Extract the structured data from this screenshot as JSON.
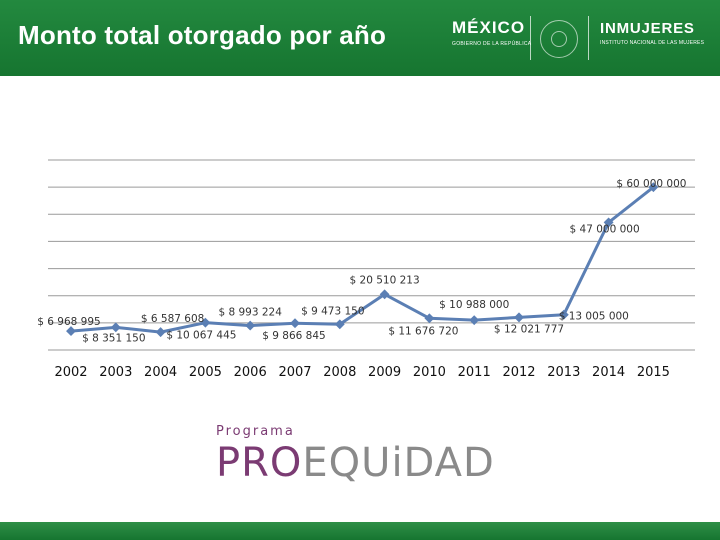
{
  "header": {
    "title": "Monto total otorgado por año",
    "logo_mexico": "MÉXICO",
    "logo_mexico_sub": "GOBIERNO DE LA REPÚBLICA",
    "logo_inmujeres": "INMUJERES",
    "logo_inmujeres_sub": "INSTITUTO NACIONAL DE LAS MUJERES"
  },
  "program": {
    "label": "Programa",
    "name_part1": "PRO",
    "name_part2": "EQUiDAD"
  },
  "colors": {
    "header_green": "#1d7f37",
    "line": "#5b7fb4",
    "gridline": "#9a9a9a",
    "program_purple": "#7b3b73"
  },
  "chart_data": {
    "type": "line",
    "title": "Monto total otorgado por año",
    "x": [
      "2002",
      "2003",
      "2004",
      "2005",
      "2006",
      "2007",
      "2008",
      "2009",
      "2010",
      "2011",
      "2012",
      "2013",
      "2014",
      "2015"
    ],
    "series": [
      {
        "name": "",
        "values": [
          6968995,
          8351150,
          6587608,
          10067445,
          8993224,
          9866845,
          9473150,
          20510213,
          11676720,
          10988000,
          12021777,
          13005000,
          47000000,
          60000000
        ]
      }
    ],
    "data_labels": [
      "$ 6 968 995",
      "$ 8 351 150",
      "$ 6 587 608",
      "$ 10 067 445",
      "$ 8 993 224",
      "$ 9 866 845",
      "$ 9 473 150",
      "$ 20 510 213",
      "$ 11 676 720",
      "$ 10 988 000",
      "$ 12 021 777",
      "$ 13 005 000",
      "$ 47 000 000",
      "$ 60 000 000"
    ],
    "ylim": [
      0,
      70000000
    ],
    "grid": true,
    "legend": "none",
    "xlabel": "",
    "ylabel": ""
  }
}
